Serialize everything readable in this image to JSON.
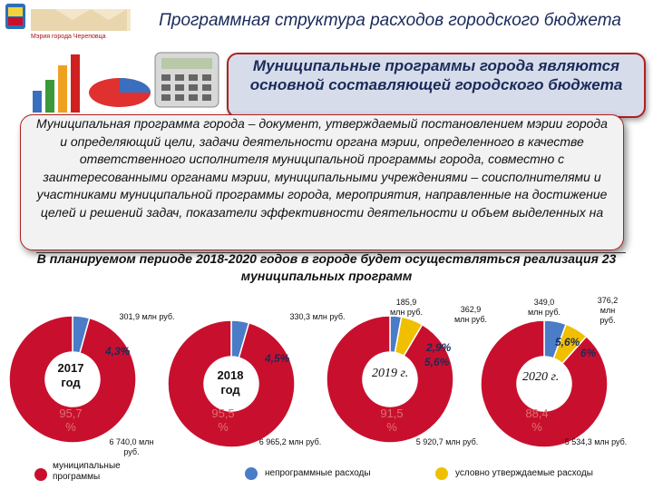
{
  "header": {
    "title": "Программная структура расходов городского бюджета",
    "logo_caption": "Мэрия города Череповца"
  },
  "callout": {
    "text": "Муниципальные программы города являются основной составляющей городского бюджета"
  },
  "definition": {
    "text": "Муниципальная программа города – документ, утверждаемый постановлением мэрии города и определяющий цели, задачи деятельности органа мэрии, определенного в качестве ответственного исполнителя муниципальной программы города, совместно с заинтересованными органами мэрии, муниципальными учреждениями – соисполнителями и участниками муниципальной программы города, мероприятия, направленные на достижение целей и решений задач, показатели эффективности деятельности и объем выделенных на"
  },
  "plan": {
    "text": "В планируемом периоде 2018-2020 годов в городе будет осуществляться реализация 23 муниципальных программ"
  },
  "charts": [
    {
      "year_label": "2017 год",
      "program_pct": "95,7 %",
      "nonprogram_pct": "4,3%",
      "conditional_pct": "",
      "program_amount": "6 740,0 млн руб.",
      "nonprogram_amount": "301,9 млн руб.",
      "conditional_amount": "",
      "program_share": 0.957,
      "nonprogram_share": 0.043,
      "conditional_share": 0.0
    },
    {
      "year_label": "2018 год",
      "program_pct": "95,5 %",
      "nonprogram_pct": "4,5%",
      "conditional_pct": "",
      "program_amount": "6 965,2 млн руб.",
      "nonprogram_amount": "330,3 млн руб.",
      "conditional_amount": "",
      "program_share": 0.955,
      "nonprogram_share": 0.045,
      "conditional_share": 0.0
    },
    {
      "year_label": "2019 г.",
      "program_pct": "91,5 %",
      "nonprogram_pct": "2,9%",
      "conditional_pct": "5,6%",
      "program_amount": "5 920,7 млн руб.",
      "nonprogram_amount": "185,9 млн руб.",
      "conditional_amount": "362,9 млн руб.",
      "program_share": 0.915,
      "nonprogram_share": 0.029,
      "conditional_share": 0.056
    },
    {
      "year_label": "2020 г.",
      "program_pct": "88,4 %",
      "nonprogram_pct": "5,6%",
      "conditional_pct": "6%",
      "program_amount": "5 534,3 млн руб.",
      "nonprogram_amount": "349,0 млн руб.",
      "conditional_amount": "376,2 млн руб.",
      "program_share": 0.884,
      "nonprogram_share": 0.056,
      "conditional_share": 0.06
    }
  ],
  "legend": {
    "programs": "муниципальные программы",
    "nonprogram": "непрограммные расходы",
    "conditional": "условно утверждаемые расходы"
  },
  "colors": {
    "programs": "#c8102e",
    "nonprogram": "#4a7cc8",
    "conditional": "#f0c000",
    "title": "#1a2a5a"
  }
}
